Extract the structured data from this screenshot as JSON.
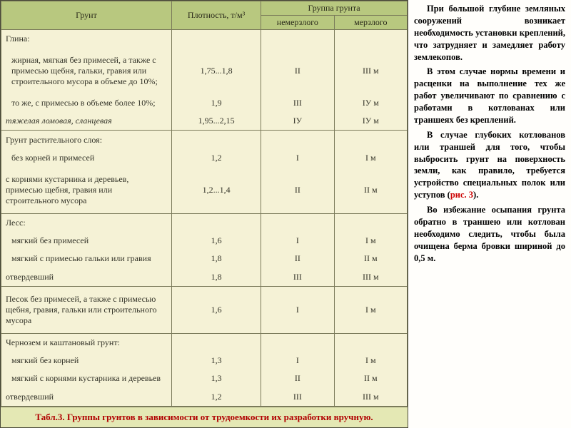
{
  "colors": {
    "header_bg": "#b8c87f",
    "body_bg": "#f5f2d6",
    "caption_bg": "#e4e8b4",
    "caption_text": "#b00000",
    "border": "#7a7a5a"
  },
  "table": {
    "head": {
      "col1": "Грунт",
      "col2": "Плотность, т/м³",
      "col3": "Группа грунта",
      "col3a": "немерзлого",
      "col3b": "мерзлого"
    },
    "sections": [
      {
        "title": "Глина:",
        "rows": [
          {
            "name": "жирная, мягкая без примесей, а также с примесью щебня, гальки, гравия или строительного мусора в объеме до 10%;",
            "d": "1,75...1,8",
            "g1": "II",
            "g2": "III м"
          },
          {
            "name": "то же, с примесью в объеме более 10%;",
            "d": "1,9",
            "g1": "III",
            "g2": "IУ м"
          },
          {
            "name": "тяжелая ломовая, сланцевая",
            "italic": true,
            "d": "1,95...2,15",
            "g1": "IУ",
            "g2": "IУ м"
          }
        ]
      },
      {
        "title": "Грунт растительного слоя:",
        "rows": [
          {
            "name": "без корней и примесей",
            "d": "1,2",
            "g1": "I",
            "g2": "I м"
          },
          {
            "name": "с корнями кустарника и деревьев, примесью щебня, гравия или строительного мусора",
            "d": "1,2...1,4",
            "g1": "II",
            "g2": "II м"
          }
        ]
      },
      {
        "title": "Лесс:",
        "rows": [
          {
            "name": "мягкий без примесей",
            "d": "1,6",
            "g1": "I",
            "g2": "I м"
          },
          {
            "name": "мягкий с примесью гальки или гравия",
            "d": "1,8",
            "g1": "II",
            "g2": "II м"
          },
          {
            "name": "отвердевший",
            "d": "1,8",
            "g1": "III",
            "g2": "III м"
          }
        ]
      },
      {
        "title": "Песок без примесей, а также с примесью щебня, гравия, гальки или строительного мусора",
        "no_subs": true,
        "d": "1,6",
        "g1": "I",
        "g2": "I м"
      },
      {
        "title": "Чернозем и каштановый грунт:",
        "rows": [
          {
            "name": "мягкий без корней",
            "d": "1,3",
            "g1": "I",
            "g2": "I м"
          },
          {
            "name": "мягкий с корнями кустарника и деревьев",
            "d": "1,3",
            "g1": "II",
            "g2": "II м"
          },
          {
            "name": "отвердевший",
            "d": "1,2",
            "g1": "III",
            "g2": "III м"
          }
        ]
      }
    ],
    "caption": "Табл.3. Группы грунтов в зависимости от трудоемкости их разработки вручную."
  },
  "text": {
    "p1a": "При большой глубине земляных сооружений возникает необходимость установки креплений, что затрудняет и замедляет работу землекопов.",
    "p2a": "В этом случае нормы времени и расценки на выполнение тех же работ увеличивают по сравнению с работами в котлованах или траншеях без креплений.",
    "p3a": "В случае глубоких котлованов или траншей для того, чтобы выбросить грунт на поверхность земли, как правило, требуется устройство специальных полок или уступов (",
    "p3ref": "рис. 3",
    "p3b": ").",
    "p4a": "Во избежание осыпания грунта обратно в траншею или котлован необходимо следить, чтобы была очищена берма бровки шириной до 0,5 м."
  }
}
